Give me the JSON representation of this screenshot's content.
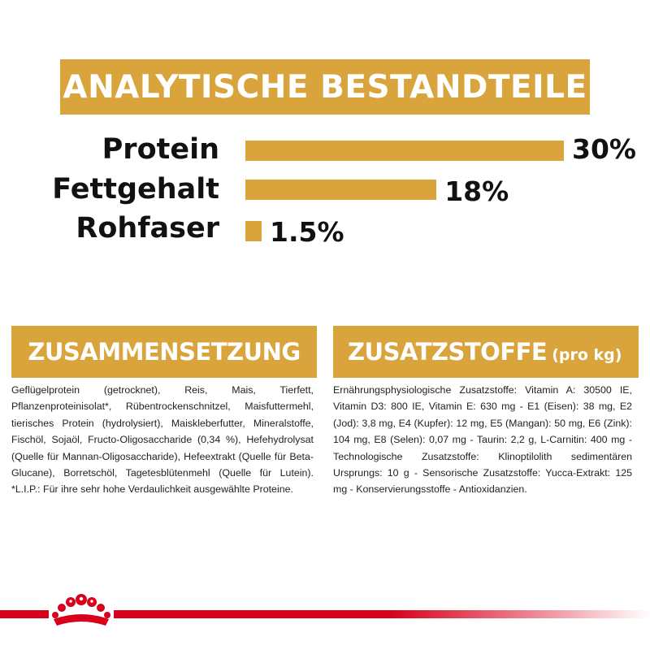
{
  "header": {
    "title": "ANALYTISCHE BESTANDTEILE"
  },
  "metrics": [
    {
      "label": "Protein",
      "value_text": "30%",
      "value": 30
    },
    {
      "label": "Fettgehalt",
      "value_text": "18%",
      "value": 18
    },
    {
      "label": "Rohfaser",
      "value_text": "1.5%",
      "value": 1.5
    }
  ],
  "composition": {
    "title": "ZUSAMMENSETZUNG",
    "text": "Geflügelprotein (getrocknet), Reis, Mais, Tierfett, Pflanzenproteinisolat*, Rübentrockenschnitzel, Maisfuttermehl, tierisches Protein (hydrolysiert), Maiskleberfutter, Mineralstoffe, Fischöl, Sojaöl, Fructo-Oligosaccharide (0,34 %), Hefehydrolysat (Quelle für Mannan-Oligosaccharide), Hefeextrakt (Quelle für Beta-Glucane), Borretschöl, Tagetesblütenmehl (Quelle für Lutein). *L.I.P.: Für ihre sehr hohe Verdaulichkeit ausgewählte Proteine."
  },
  "additives": {
    "title": "ZUSATZSTOFFE",
    "unit": "(pro kg)",
    "text": "Ernährungsphysiologische Zusatzstoffe: Vitamin A: 30500 IE, Vitamin D3: 800 IE, Vitamin E: 630 mg - E1 (Eisen): 38 mg, E2 (Jod): 3,8 mg, E4 (Kupfer): 12 mg, E5 (Mangan): 50 mg, E6 (Zink): 104 mg, E8 (Selen): 0,07 mg - Taurin: 2,2 g, L-Carnitin: 400 mg - Technologische Zusatzstoffe: Klinoptilolith sedimentären Ursprungs: 10 g - Sensorische Zusatzstoffe: Yucca-Extrakt: 125 mg - Konservierungsstoffe - Antioxidanzien."
  },
  "colors": {
    "accent": "#d9a43b",
    "brand_red": "#d9001b"
  },
  "brand": {
    "icon": "crown-icon"
  }
}
